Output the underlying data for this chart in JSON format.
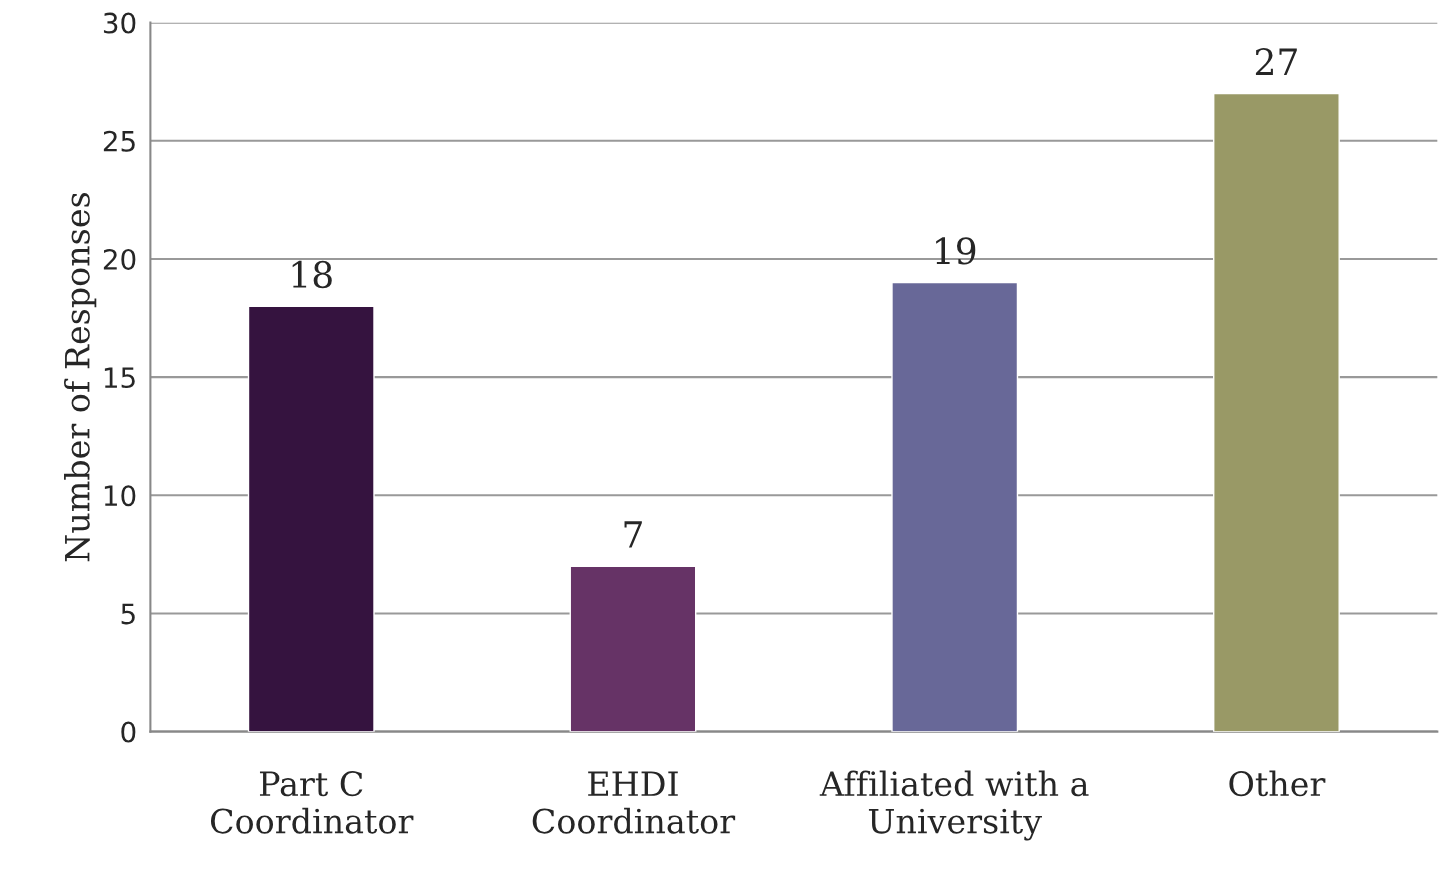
{
  "chart_data": {
    "type": "bar",
    "ylabel": "Number of Responses",
    "categories": [
      "Part C\nCoordinator",
      "EHDI\nCoordinator",
      "Affiliated with a\nUniversity",
      "Other"
    ],
    "values": [
      18,
      7,
      19,
      27
    ],
    "colors": [
      "#35133f",
      "#663366",
      "#686898",
      "#999966"
    ],
    "ylim": [
      0,
      30
    ],
    "yticks": [
      0,
      5,
      10,
      15,
      20,
      25,
      30
    ],
    "grid": "y",
    "data_labels": true
  }
}
